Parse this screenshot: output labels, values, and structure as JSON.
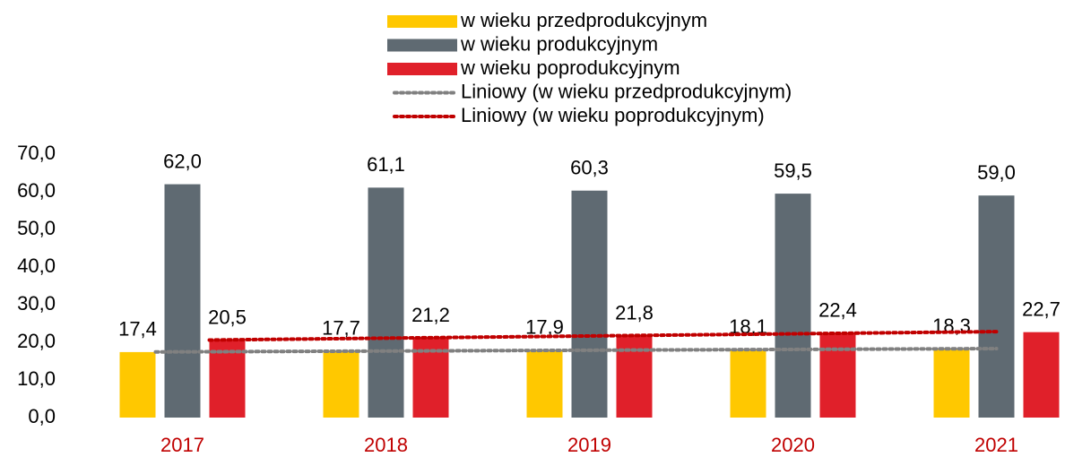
{
  "chart_data": {
    "type": "bar",
    "categories": [
      "2017",
      "2018",
      "2019",
      "2020",
      "2021"
    ],
    "series": [
      {
        "name": "w wieku przedprodukcyjnym",
        "color": "#ffc800",
        "values": [
          17.4,
          17.7,
          17.9,
          18.1,
          18.3
        ],
        "value_labels": [
          "17,4",
          "17,7",
          "17,9",
          "18,1",
          "18,3"
        ]
      },
      {
        "name": "w wieku produkcyjnym",
        "color": "#5f6a72",
        "values": [
          62.0,
          61.1,
          60.3,
          59.5,
          59.0
        ],
        "value_labels": [
          "62,0",
          "61,1",
          "60,3",
          "59,5",
          "59,0"
        ]
      },
      {
        "name": "w wieku poprodukcyjnym",
        "color": "#e0202a",
        "values": [
          20.5,
          21.2,
          21.8,
          22.4,
          22.7
        ],
        "value_labels": [
          "20,5",
          "21,2",
          "21,8",
          "22,4",
          "22,7"
        ]
      }
    ],
    "trendlines": [
      {
        "name": "Liniowy (w wieku przedprodukcyjnym)",
        "color": "#808080",
        "series": 0
      },
      {
        "name": "Liniowy (w wieku poprodukcyjnym)",
        "color": "#c00000",
        "series": 2
      }
    ],
    "category_color": "#c00000",
    "ylim": [
      0,
      70
    ],
    "yticks": [
      {
        "value": 0,
        "label": "0,0"
      },
      {
        "value": 10,
        "label": "10,0"
      },
      {
        "value": 20,
        "label": "20,0"
      },
      {
        "value": 30,
        "label": "30,0"
      },
      {
        "value": 40,
        "label": "40,0"
      },
      {
        "value": 50,
        "label": "50,0"
      },
      {
        "value": 60,
        "label": "60,0"
      },
      {
        "value": 70,
        "label": "70,0"
      }
    ],
    "grid": false
  }
}
